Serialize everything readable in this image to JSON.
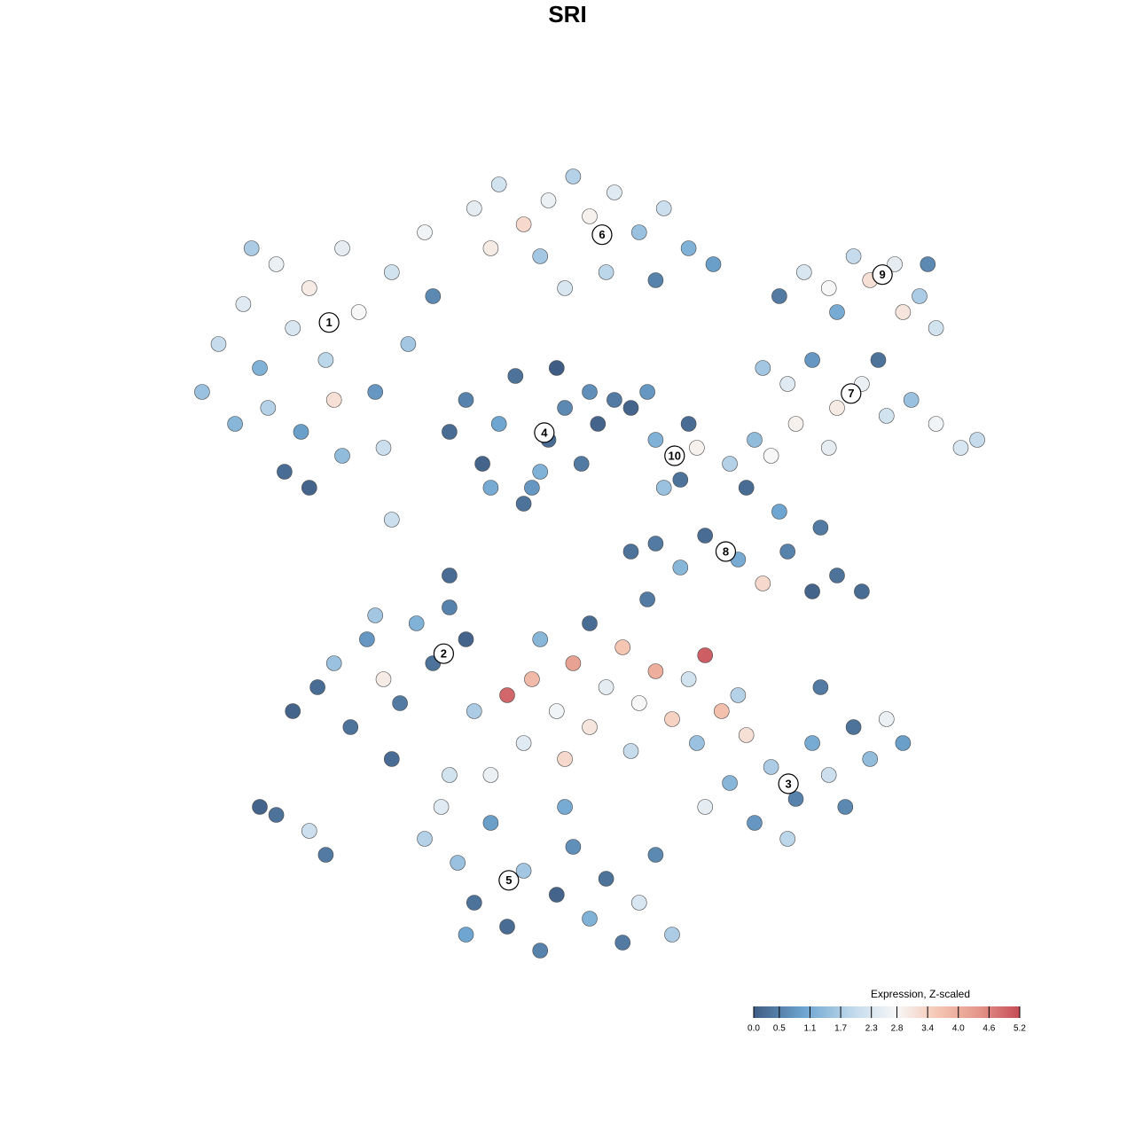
{
  "chart_data": {
    "type": "scatter",
    "title": "SRI",
    "xlim": [
      0,
      100
    ],
    "ylim": [
      0,
      100
    ],
    "x": [
      3,
      5,
      8,
      10,
      12,
      14,
      16,
      18,
      20,
      22,
      24,
      26,
      28,
      30,
      15,
      13,
      16,
      20,
      11,
      7,
      25,
      19,
      9,
      31,
      36,
      39,
      42,
      45,
      48,
      50,
      53,
      56,
      59,
      62,
      65,
      44,
      38,
      58,
      52,
      47,
      73,
      76,
      79,
      82,
      84,
      87,
      90,
      92,
      88,
      80,
      91,
      71,
      74,
      77,
      80,
      83,
      86,
      89,
      92,
      95,
      97,
      75,
      85,
      72,
      79,
      33,
      35,
      37,
      39,
      41,
      43,
      45,
      47,
      49,
      51,
      42,
      38,
      46,
      50,
      44,
      58,
      61,
      63,
      59,
      62,
      55,
      53,
      57,
      58,
      61,
      64,
      68,
      71,
      74,
      77,
      80,
      83,
      78,
      73,
      69,
      67,
      70,
      14,
      17,
      19,
      21,
      23,
      25,
      27,
      29,
      31,
      33,
      35,
      26,
      12,
      16,
      10,
      18,
      24,
      40,
      43,
      46,
      48,
      50,
      52,
      54,
      56,
      58,
      60,
      62,
      64,
      66,
      44,
      50,
      57,
      47,
      55,
      63,
      68,
      42,
      36,
      38,
      64,
      67,
      70,
      72,
      75,
      77,
      79,
      82,
      84,
      86,
      88,
      81,
      74,
      69,
      78,
      30,
      32,
      34,
      36,
      38,
      40,
      42,
      44,
      46,
      48,
      50,
      52,
      54,
      56,
      58,
      35,
      47,
      33,
      60,
      26,
      33,
      55
    ],
    "y": [
      72,
      78,
      83,
      75,
      88,
      80,
      85,
      76,
      90,
      82,
      72,
      87,
      78,
      92,
      67,
      62,
      60,
      64,
      70,
      68,
      65,
      71,
      90,
      84,
      95,
      98,
      93,
      96,
      99,
      94,
      97,
      92,
      95,
      90,
      88,
      89,
      90,
      86,
      87,
      85,
      84,
      87,
      85,
      89,
      86,
      88,
      84,
      80,
      82,
      82,
      88,
      75,
      73,
      76,
      70,
      73,
      69,
      71,
      68,
      65,
      66,
      68,
      76,
      64,
      65,
      67,
      71,
      63,
      68,
      74,
      60,
      66,
      70,
      63,
      68,
      58,
      60,
      75,
      72,
      62,
      66,
      61,
      65,
      60,
      68,
      70,
      71,
      72,
      53,
      50,
      54,
      51,
      48,
      52,
      47,
      49,
      47,
      55,
      57,
      60,
      63,
      66,
      32,
      35,
      38,
      30,
      41,
      36,
      33,
      43,
      38,
      45,
      41,
      26,
      19,
      17,
      20,
      14,
      44,
      34,
      36,
      32,
      38,
      30,
      35,
      40,
      33,
      37,
      31,
      36,
      39,
      32,
      41,
      43,
      46,
      26,
      27,
      28,
      34,
      28,
      32,
      24,
      20,
      23,
      18,
      25,
      21,
      28,
      24,
      30,
      26,
      31,
      28,
      20,
      16,
      29,
      35,
      16,
      20,
      13,
      8,
      18,
      5,
      12,
      2,
      9,
      15,
      6,
      11,
      3,
      8,
      14,
      4,
      20,
      24,
      4,
      56,
      49,
      52
    ],
    "values": [
      1.5,
      2.0,
      2.4,
      1.2,
      2.6,
      2.3,
      3.0,
      1.9,
      2.5,
      2.8,
      0.8,
      2.2,
      1.6,
      2.7,
      0.9,
      0.2,
      0.1,
      1.4,
      1.8,
      1.3,
      2.1,
      3.2,
      1.7,
      0.6,
      2.5,
      2.2,
      3.3,
      2.6,
      1.8,
      2.9,
      2.4,
      1.5,
      2.1,
      1.2,
      0.9,
      1.6,
      3.0,
      0.5,
      1.9,
      2.3,
      0.4,
      2.3,
      2.8,
      2.0,
      3.2,
      2.5,
      1.7,
      2.2,
      3.1,
      1.1,
      0.6,
      1.6,
      2.4,
      0.8,
      3.0,
      2.6,
      2.2,
      1.5,
      2.7,
      2.3,
      2.0,
      2.9,
      0.3,
      2.8,
      2.5,
      0.2,
      0.5,
      0.1,
      1.0,
      0.3,
      0.8,
      0.2,
      0.6,
      0.4,
      0.1,
      0.3,
      1.1,
      0.0,
      0.7,
      1.2,
      1.2,
      0.3,
      2.9,
      1.5,
      0.2,
      0.1,
      0.4,
      0.8,
      0.4,
      1.3,
      0.2,
      1.1,
      3.3,
      0.5,
      0.1,
      0.3,
      0.2,
      0.4,
      1.0,
      0.2,
      1.8,
      1.4,
      0.1,
      0.2,
      1.5,
      0.3,
      0.8,
      3.0,
      0.4,
      1.2,
      0.3,
      0.5,
      0.1,
      0.2,
      0.3,
      2.1,
      0.1,
      0.4,
      1.6,
      4.9,
      3.8,
      2.7,
      4.2,
      3.1,
      2.5,
      3.6,
      2.8,
      4.0,
      3.4,
      2.2,
      5.0,
      3.7,
      1.3,
      0.2,
      0.4,
      3.3,
      2.0,
      1.5,
      1.8,
      2.4,
      1.7,
      2.6,
      2.5,
      1.3,
      0.8,
      1.7,
      0.5,
      1.1,
      2.1,
      0.3,
      1.4,
      2.6,
      0.9,
      0.6,
      1.9,
      3.2,
      0.4,
      1.8,
      2.4,
      1.5,
      0.3,
      0.9,
      0.2,
      1.6,
      0.5,
      0.1,
      0.7,
      1.2,
      0.3,
      0.4,
      2.3,
      0.6,
      1.0,
      1.1,
      2.2,
      1.7,
      2.1,
      0.2,
      0.3
    ],
    "annotations": [
      {
        "text": "1",
        "x": 18.4,
        "y": 80.7
      },
      {
        "text": "2",
        "x": 32.3,
        "y": 39.2
      },
      {
        "text": "3",
        "x": 74.1,
        "y": 22.9
      },
      {
        "text": "4",
        "x": 44.5,
        "y": 66.9
      },
      {
        "text": "5",
        "x": 40.2,
        "y": 10.8
      },
      {
        "text": "6",
        "x": 51.5,
        "y": 91.7
      },
      {
        "text": "7",
        "x": 81.7,
        "y": 71.8
      },
      {
        "text": "8",
        "x": 66.5,
        "y": 52.0
      },
      {
        "text": "9",
        "x": 85.5,
        "y": 86.7
      },
      {
        "text": "10",
        "x": 60.3,
        "y": 64.0
      }
    ],
    "colorbar": {
      "title": "Expression, Z-scaled",
      "lim": [
        0,
        5.2
      ],
      "ticks": [
        {
          "value": 0,
          "label": "0.0"
        },
        0.5,
        1.1,
        1.7,
        2.3,
        2.8,
        3.4,
        {
          "value": 4,
          "label": "4.0"
        },
        4.6,
        5.2
      ],
      "colorscale": [
        {
          "value": 0,
          "color": "#3f5d84"
        },
        {
          "value": 1,
          "color": "#6ea6d1"
        },
        {
          "value": 2,
          "color": "#c6dced"
        },
        {
          "value": 2.8,
          "color": "#f7f7f7"
        },
        {
          "value": 3.6,
          "color": "#f5c6b2"
        },
        {
          "value": 4.4,
          "color": "#e49689"
        },
        {
          "value": 5.2,
          "color": "#c54b57"
        }
      ]
    }
  }
}
